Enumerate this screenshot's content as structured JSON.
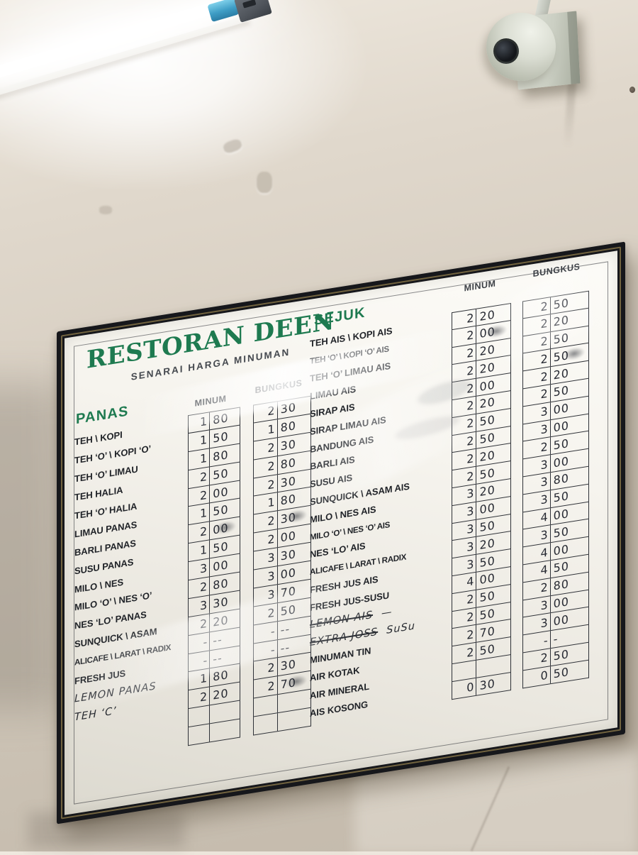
{
  "scene": {
    "wall_color": "#d5ccbf",
    "frame_color": "#16171b",
    "accent_green": "#1e7a50",
    "objects": [
      "fluorescent-tube-light",
      "cctv-dome-camera",
      "menu-whiteboard"
    ]
  },
  "board": {
    "title": "RESTORAN DEEN",
    "subtitle": "SENARAI HARGA MINUMAN",
    "columns": {
      "minum": "MINUM",
      "bungkus": "BUNGKUS"
    },
    "sections": [
      {
        "id": "panas",
        "heading": "PANAS",
        "rows": [
          {
            "label": "TEH \\ KOPI",
            "m": "1 80",
            "b": "2 30"
          },
          {
            "label": "TEH ‘O’ \\ KOPI ‘O’",
            "m": "1 50",
            "b": "1 80"
          },
          {
            "label": "TEH ‘O’ LIMAU",
            "m": "1 80",
            "b": "2 30"
          },
          {
            "label": "TEH HALIA",
            "m": "2 50",
            "b": "2 80"
          },
          {
            "label": "TEH ‘O’ HALIA",
            "m": "2 00",
            "b": "2 30"
          },
          {
            "label": "LIMAU PANAS",
            "m": "1 50",
            "b": "1 80"
          },
          {
            "label": "BARLI PANAS",
            "m": "2 00",
            "b": "2 30",
            "scribble": [
              "m",
              "b"
            ]
          },
          {
            "label": "SUSU PANAS",
            "m": "1 50",
            "b": "2 00"
          },
          {
            "label": "MILO \\ NES",
            "m": "3 00",
            "b": "3 30"
          },
          {
            "label": "MILO ‘O’ \\ NES ‘O’",
            "m": "2 80",
            "b": "3 00"
          },
          {
            "label": "NES ‘LO’ PANAS",
            "m": "3 30",
            "b": "3 70"
          },
          {
            "label": "SUNQUICK \\ ASAM",
            "m": "2 20",
            "b": "2 50"
          },
          {
            "label": "ALICAFE \\ LARAT \\ RADIX",
            "m": "- --",
            "b": "- --"
          },
          {
            "label": "FRESH JUS",
            "m": "- --",
            "b": "- --"
          },
          {
            "label": "LEMON PANAS",
            "hand": true,
            "m": "1 80",
            "b": "2 30"
          },
          {
            "label": "TEH ‘C’",
            "hand": true,
            "m": "2 20",
            "b": "2 70",
            "scribble": [
              "b"
            ]
          },
          {
            "label": "",
            "m": "",
            "b": ""
          },
          {
            "label": "",
            "m": "",
            "b": ""
          }
        ]
      },
      {
        "id": "sejuk",
        "heading": "SEJUK",
        "rows": [
          {
            "label": "TEH AIS \\ KOPI AIS",
            "m": "2 20",
            "b": "2 50"
          },
          {
            "label": "TEH ‘O’ \\ KOPI ‘O’ AIS",
            "m": "2 00",
            "b": "2 20",
            "scribble": [
              "m"
            ]
          },
          {
            "label": "TEH ‘O’ LIMAU AIS",
            "m": "2 20",
            "b": "2 50"
          },
          {
            "label": "LIMAU AIS",
            "m": "2 20",
            "b": "2 50",
            "scribble": [
              "b"
            ]
          },
          {
            "label": "SIRAP AIS",
            "m": "2 00",
            "b": "2 20"
          },
          {
            "label": "SIRAP LIMAU AIS",
            "m": "2 20",
            "b": "2 50"
          },
          {
            "label": "BANDUNG AIS",
            "m": "2 50",
            "b": "3 00"
          },
          {
            "label": "BARLI AIS",
            "m": "2 50",
            "b": "3 00"
          },
          {
            "label": "SUSU AIS",
            "m": "2 20",
            "b": "2 50"
          },
          {
            "label": "SUNQUICK \\ ASAM AIS",
            "m": "2 50",
            "b": "3 00"
          },
          {
            "label": "MILO \\ NES AIS",
            "m": "3 20",
            "b": "3 80"
          },
          {
            "label": "MILO ‘O’ \\ NES ‘O’ AIS",
            "m": "3 00",
            "b": "3 50"
          },
          {
            "label": "NES ‘LO’ AIS",
            "m": "3 50",
            "b": "4 00"
          },
          {
            "label": "ALICAFE \\ LARAT \\ RADIX",
            "m": "3 20",
            "b": "3 50"
          },
          {
            "label": "FRESH JUS AIS",
            "m": "3 50",
            "b": "4 00"
          },
          {
            "label": "FRESH JUS-SUSU",
            "m": "4 00",
            "b": "4 50"
          },
          {
            "label": "LEMON AIS",
            "hand": true,
            "strike": true,
            "suffix": "—",
            "m": "2 50",
            "b": "2 80"
          },
          {
            "label": "EXTRA JOSS",
            "hand": true,
            "strike": true,
            "suffix": "SuSu",
            "m": "2 50",
            "b": "3 00"
          },
          {
            "label": "MINUMAN TIN",
            "m": "2 70",
            "b": "3 00"
          },
          {
            "label": "AIR KOTAK",
            "m": "2 50",
            "b": "- -"
          },
          {
            "label": "AIR MINERAL",
            "m": "",
            "b": "2 50"
          },
          {
            "label": "AIS KOSONG",
            "m": "0 30",
            "b": "0 50"
          }
        ]
      }
    ]
  }
}
